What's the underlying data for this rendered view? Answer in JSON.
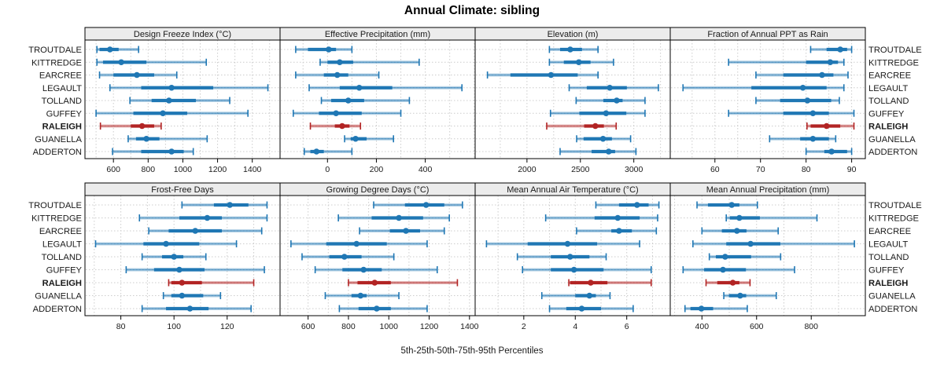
{
  "chart_data": {
    "type": "percentile-dotplot",
    "title": "Annual Climate: sibling",
    "caption": "5th-25th-50th-75th-95th Percentiles",
    "percentiles": [
      5,
      25,
      50,
      75,
      95
    ],
    "stations": [
      "TROUTDALE",
      "KITTREDGE",
      "EARCREE",
      "LEGAULT",
      "TOLLAND",
      "GUFFEY",
      "RALEIGH",
      "GUANELLA",
      "ADDERTON"
    ],
    "highlight_station": "RALEIGH",
    "legend_position": "none",
    "grid": "dotted",
    "station_labels": "both-sides",
    "colors": {
      "series": "#1f77b4",
      "highlight": "#b22424",
      "strip_bg": "#ececec",
      "strip_border": "#000000",
      "panel_border": "#000000",
      "gridline": "#cccccc",
      "text": "#1a1a1a"
    },
    "panels": [
      {
        "title": "Design Freeze Index (°C)",
        "ticks": [
          600,
          800,
          1000,
          1200,
          1400
        ],
        "grid_step": 100,
        "xmin": 436,
        "xmax": 1560,
        "values": {
          "TROUTDALE": [
            505,
            520,
            580,
            630,
            745
          ],
          "KITTREDGE": [
            505,
            540,
            645,
            790,
            1135
          ],
          "EARCREE": [
            520,
            600,
            735,
            835,
            965
          ],
          "LEGAULT": [
            580,
            760,
            935,
            1175,
            1490
          ],
          "TOLLAND": [
            695,
            820,
            920,
            1075,
            1270
          ],
          "GUFFEY": [
            500,
            715,
            885,
            1025,
            1375
          ],
          "RALEIGH": [
            525,
            700,
            765,
            835,
            875
          ],
          "GUANELLA": [
            685,
            730,
            790,
            865,
            1140
          ],
          "ADDERTON": [
            595,
            760,
            935,
            1005,
            1060
          ]
        }
      },
      {
        "title": "Effective Precipitation (mm)",
        "ticks": [
          0,
          200,
          400
        ],
        "grid_step": 100,
        "xmin": -194,
        "xmax": 604,
        "values": {
          "TROUTDALE": [
            -130,
            -80,
            5,
            35,
            100
          ],
          "KITTREDGE": [
            -30,
            0,
            50,
            105,
            375
          ],
          "EARCREE": [
            -130,
            -15,
            40,
            85,
            210
          ],
          "LEGAULT": [
            -75,
            50,
            130,
            265,
            550
          ],
          "TOLLAND": [
            -25,
            15,
            85,
            150,
            335
          ],
          "GUFFEY": [
            -140,
            -35,
            35,
            140,
            300
          ],
          "RALEIGH": [
            -70,
            30,
            60,
            90,
            135
          ],
          "GUANELLA": [
            70,
            95,
            115,
            160,
            270
          ],
          "ADDERTON": [
            -95,
            -70,
            -45,
            -15,
            100
          ]
        }
      },
      {
        "title": "Elevation (m)",
        "ticks": [
          2000,
          2500,
          3000
        ],
        "grid_step": 250,
        "xmin": 1515,
        "xmax": 3341,
        "values": {
          "TROUTDALE": [
            2210,
            2310,
            2405,
            2515,
            2665
          ],
          "KITTREDGE": [
            2210,
            2345,
            2485,
            2595,
            2810
          ],
          "EARCREE": [
            1630,
            1845,
            2225,
            2475,
            2665
          ],
          "LEGAULT": [
            2395,
            2560,
            2775,
            2935,
            3230
          ],
          "TOLLAND": [
            2460,
            2715,
            2840,
            2895,
            3105
          ],
          "GUFFEY": [
            2220,
            2490,
            2740,
            2930,
            3105
          ],
          "RALEIGH": [
            2185,
            2535,
            2640,
            2720,
            2835
          ],
          "GUANELLA": [
            2465,
            2530,
            2712,
            2795,
            2970
          ],
          "ADDERTON": [
            2310,
            2605,
            2765,
            2825,
            3020
          ]
        }
      },
      {
        "title": "Fraction of Annual PPT as Rain",
        "ticks": [
          60,
          70,
          80,
          90
        ],
        "grid_step": 5,
        "xmin": 50.2,
        "xmax": 93,
        "values": {
          "TROUTDALE": [
            81,
            84.5,
            87.5,
            89,
            90
          ],
          "KITTREDGE": [
            63,
            80,
            85.3,
            87,
            88.3
          ],
          "EARCREE": [
            69,
            75,
            83.5,
            86,
            89.2
          ],
          "LEGAULT": [
            53,
            68,
            79.3,
            84.5,
            88.3
          ],
          "TOLLAND": [
            69,
            74.3,
            80.3,
            85.5,
            87.3
          ],
          "GUFFEY": [
            63,
            75,
            81.5,
            85,
            90.5
          ],
          "RALEIGH": [
            80.2,
            81,
            84.5,
            87.5,
            90.5
          ],
          "GUANELLA": [
            72,
            78.7,
            81.5,
            85,
            86.5
          ],
          "ADDERTON": [
            80,
            84,
            85.6,
            89,
            90
          ]
        }
      },
      {
        "title": "Frost-Free Days",
        "ticks": [
          80,
          100,
          120
        ],
        "grid_step": 10,
        "xmin": 66.5,
        "xmax": 139.9,
        "values": {
          "TROUTDALE": [
            103,
            115,
            121,
            128,
            135
          ],
          "KITTREDGE": [
            87,
            102,
            112.5,
            118,
            135
          ],
          "EARCREE": [
            90.5,
            98,
            108,
            118,
            133
          ],
          "LEGAULT": [
            70.5,
            88.5,
            97,
            109.5,
            123.5
          ],
          "TOLLAND": [
            88,
            95.5,
            100,
            103.5,
            112
          ],
          "GUFFEY": [
            82,
            92.5,
            102,
            111.5,
            134
          ],
          "RALEIGH": [
            98,
            99,
            103,
            110.5,
            130
          ],
          "GUANELLA": [
            96,
            99,
            103,
            111,
            117.5
          ],
          "ADDERTON": [
            88,
            97,
            106,
            113,
            129
          ]
        }
      },
      {
        "title": "Growing Degree Days (°C)",
        "ticks": [
          600,
          800,
          1000,
          1200,
          1400
        ],
        "grid_step": 100,
        "xmin": 461,
        "xmax": 1428,
        "values": {
          "TROUTDALE": [
            925,
            1080,
            1185,
            1275,
            1365
          ],
          "KITTREDGE": [
            750,
            915,
            1050,
            1170,
            1300
          ],
          "EARCREE": [
            855,
            1005,
            1085,
            1155,
            1275
          ],
          "LEGAULT": [
            515,
            690,
            840,
            990,
            1190
          ],
          "TOLLAND": [
            570,
            705,
            780,
            865,
            1025
          ],
          "GUFFEY": [
            635,
            770,
            875,
            965,
            1240
          ],
          "RALEIGH": [
            800,
            845,
            930,
            1010,
            1340
          ],
          "GUANELLA": [
            685,
            815,
            860,
            890,
            1050
          ],
          "ADDERTON": [
            755,
            850,
            940,
            1010,
            1190
          ]
        }
      },
      {
        "title": "Mean Annual Air Temperature (°C)",
        "ticks": [
          2,
          4,
          6
        ],
        "grid_step": 1,
        "xmin": 0.11,
        "xmax": 7.69,
        "values": {
          "TROUTDALE": [
            4.8,
            5.7,
            6.4,
            6.85,
            7.25
          ],
          "KITTREDGE": [
            2.85,
            4.75,
            5.65,
            6.5,
            7.2
          ],
          "EARCREE": [
            4.05,
            5.4,
            5.7,
            6.2,
            7.15
          ],
          "LEGAULT": [
            0.55,
            2.15,
            3.7,
            4.85,
            6.5
          ],
          "TOLLAND": [
            1.75,
            3.05,
            3.8,
            4.55,
            5.2
          ],
          "GUFFEY": [
            1.95,
            3.05,
            3.95,
            5.1,
            6.95
          ],
          "RALEIGH": [
            3.75,
            3.8,
            4.6,
            5.25,
            6.95
          ],
          "GUANELLA": [
            2.7,
            4.0,
            4.55,
            4.8,
            5.35
          ],
          "ADDERTON": [
            3.0,
            3.65,
            4.25,
            5.0,
            6.25
          ]
        }
      },
      {
        "title": "Mean Annual Precipitation (mm)",
        "ticks": [
          400,
          600,
          800
        ],
        "grid_step": 100,
        "xmin": 284,
        "xmax": 998,
        "values": {
          "TROUTDALE": [
            382,
            422,
            509,
            537,
            603
          ],
          "KITTREDGE": [
            489,
            502,
            537,
            612,
            821
          ],
          "EARCREE": [
            400,
            473,
            528,
            563,
            679
          ],
          "LEGAULT": [
            367,
            489,
            578,
            687,
            958
          ],
          "TOLLAND": [
            427,
            451,
            485,
            580,
            688
          ],
          "GUFFEY": [
            331,
            408,
            477,
            561,
            739
          ],
          "RALEIGH": [
            415,
            456,
            513,
            537,
            576
          ],
          "GUANELLA": [
            480,
            499,
            540,
            562,
            672
          ],
          "ADDERTON": [
            338,
            358,
            398,
            441,
            566
          ]
        }
      }
    ]
  }
}
